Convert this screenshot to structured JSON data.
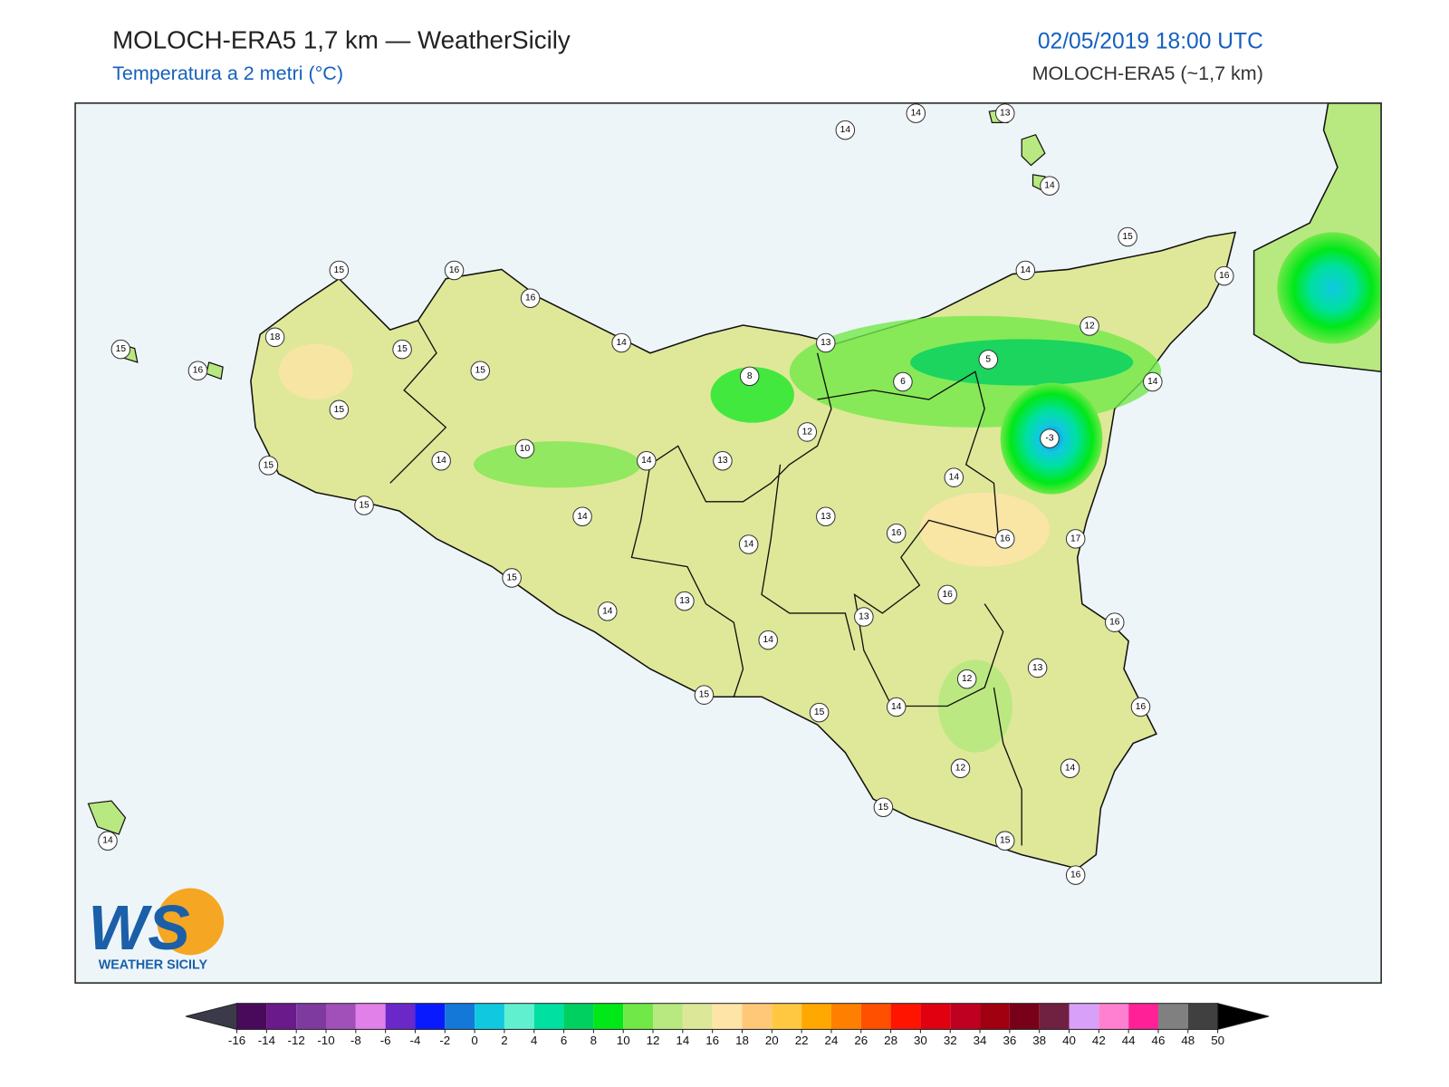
{
  "header": {
    "title": "MOLOCH-ERA5 1,7 km — WeatherSicily",
    "subtitle": "Temperatura a 2 metri (°C)",
    "datetime": "02/05/2019 18:00 UTC",
    "model": "MOLOCH-ERA5 (~1,7 km)"
  },
  "stations": [
    14,
    14,
    13,
    14,
    15,
    14,
    16,
    15,
    16,
    16,
    18,
    15,
    15,
    16,
    15,
    14,
    13,
    8,
    5,
    6,
    12,
    14,
    15,
    -3,
    12,
    10,
    14,
    14,
    13,
    15,
    14,
    15,
    14,
    13,
    16,
    16,
    17,
    14,
    15,
    16,
    14,
    13,
    13,
    16,
    14,
    13,
    12,
    15,
    16,
    14,
    15,
    14,
    12,
    15,
    14,
    15,
    16
  ],
  "colorbar": {
    "ticks": [
      -16,
      -14,
      -12,
      -10,
      -8,
      -6,
      -4,
      -2,
      0,
      2,
      4,
      6,
      8,
      10,
      12,
      14,
      16,
      18,
      20,
      22,
      24,
      26,
      28,
      30,
      32,
      34,
      36,
      38,
      40,
      42,
      44,
      46,
      48,
      50
    ],
    "colors": [
      "#4a0a5c",
      "#6a1a8a",
      "#7f3aa0",
      "#a050b8",
      "#e080e8",
      "#6a28c8",
      "#0a1aff",
      "#1478d8",
      "#10c8e0",
      "#60f0d0",
      "#00e0a0",
      "#00d060",
      "#00e818",
      "#70e848",
      "#b8e880",
      "#dce898",
      "#ffe4a8",
      "#ffc878",
      "#ffc840",
      "#ffa800",
      "#ff8000",
      "#ff5000",
      "#ff1400",
      "#e00010",
      "#c00020",
      "#a00010",
      "#780018",
      "#702040",
      "#d8a0f8",
      "#ff80d0",
      "#ff2098",
      "#808080",
      "#404040"
    ],
    "under_color": "#3a3a4a",
    "over_color": "#000000"
  },
  "logo": {
    "letters": "WS",
    "text": "WEATHER SICILY"
  }
}
